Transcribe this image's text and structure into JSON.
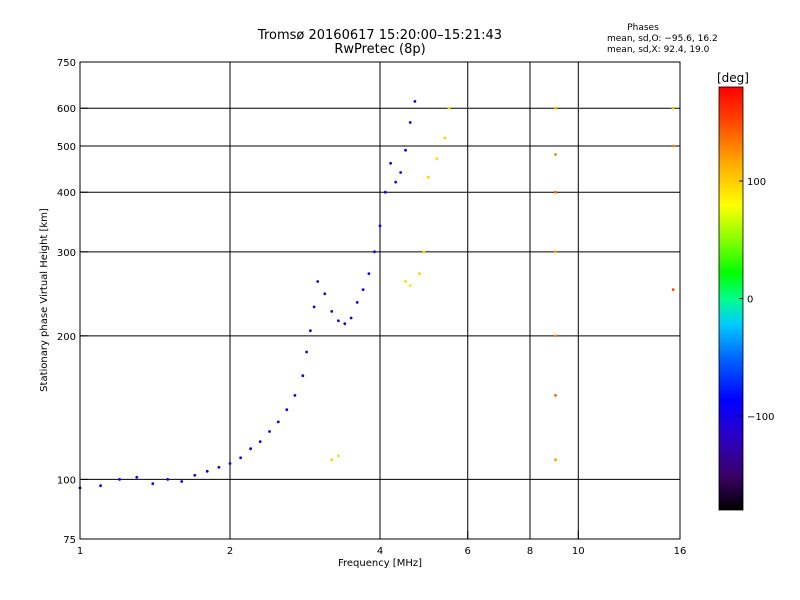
{
  "chart_data": {
    "type": "scatter",
    "title": "Tromsø 20160617 15:20:00–15:21:43",
    "subtitle": "RwPretec (8p)",
    "xlabel": "Frequency [MHz]",
    "ylabel": "Stationary phase Virtual Height [km]",
    "x_scale": "log",
    "y_scale": "log",
    "xlim": [
      1,
      16
    ],
    "ylim": [
      75,
      750
    ],
    "x_ticks": [
      1,
      2,
      4,
      6,
      8,
      10,
      16
    ],
    "x_tick_labels": [
      "1",
      "2",
      "4",
      "6",
      "8",
      "10",
      "16"
    ],
    "y_ticks": [
      75,
      100,
      200,
      300,
      400,
      500,
      600,
      750
    ],
    "y_tick_labels": [
      "75",
      "100",
      "200",
      "300",
      "400",
      "500",
      "600",
      "750"
    ],
    "grid": true,
    "phases_box": {
      "title": "Phases",
      "line1": "mean, sd,O: −95.6, 16.2",
      "line2": "mean, sd,X:  92.4, 19.0"
    },
    "colorbar": {
      "label": "[deg]",
      "range": [
        -180,
        180
      ],
      "ticks": [
        100,
        0,
        -100
      ],
      "tick_labels": [
        "100",
        "0",
        "−100"
      ]
    },
    "series": [
      {
        "values": [
          {
            "x": 1.0,
            "y": 96,
            "phase": -95
          },
          {
            "x": 1.1,
            "y": 97,
            "phase": -100
          },
          {
            "x": 1.2,
            "y": 100,
            "phase": -95
          },
          {
            "x": 1.3,
            "y": 101,
            "phase": -100
          },
          {
            "x": 1.4,
            "y": 98,
            "phase": -95
          },
          {
            "x": 1.5,
            "y": 100,
            "phase": -100
          },
          {
            "x": 1.6,
            "y": 99,
            "phase": -95
          },
          {
            "x": 1.7,
            "y": 102,
            "phase": -100
          },
          {
            "x": 1.8,
            "y": 104,
            "phase": -95
          },
          {
            "x": 1.9,
            "y": 106,
            "phase": -100
          },
          {
            "x": 2.0,
            "y": 108,
            "phase": -95
          },
          {
            "x": 2.1,
            "y": 111,
            "phase": -100
          },
          {
            "x": 2.2,
            "y": 116,
            "phase": -95
          },
          {
            "x": 2.3,
            "y": 120,
            "phase": -100
          },
          {
            "x": 2.4,
            "y": 126,
            "phase": -95
          },
          {
            "x": 2.5,
            "y": 132,
            "phase": -100
          },
          {
            "x": 2.6,
            "y": 140,
            "phase": -95
          },
          {
            "x": 2.7,
            "y": 150,
            "phase": -100
          },
          {
            "x": 2.8,
            "y": 165,
            "phase": -95
          },
          {
            "x": 2.85,
            "y": 185,
            "phase": -100
          },
          {
            "x": 2.9,
            "y": 205,
            "phase": -95
          },
          {
            "x": 2.95,
            "y": 230,
            "phase": -100
          },
          {
            "x": 3.0,
            "y": 260,
            "phase": -120
          },
          {
            "x": 3.1,
            "y": 245,
            "phase": -130
          },
          {
            "x": 3.2,
            "y": 225,
            "phase": -130
          },
          {
            "x": 3.3,
            "y": 215,
            "phase": -120
          },
          {
            "x": 3.4,
            "y": 212,
            "phase": -110
          },
          {
            "x": 3.5,
            "y": 218,
            "phase": -100
          },
          {
            "x": 3.6,
            "y": 235,
            "phase": -95
          },
          {
            "x": 3.7,
            "y": 250,
            "phase": -100
          },
          {
            "x": 3.8,
            "y": 270,
            "phase": -95
          },
          {
            "x": 3.9,
            "y": 300,
            "phase": -100
          },
          {
            "x": 4.0,
            "y": 340,
            "phase": -95
          },
          {
            "x": 4.1,
            "y": 400,
            "phase": -100
          },
          {
            "x": 4.2,
            "y": 460,
            "phase": -100
          },
          {
            "x": 4.3,
            "y": 420,
            "phase": -95
          },
          {
            "x": 4.4,
            "y": 440,
            "phase": -100
          },
          {
            "x": 4.5,
            "y": 490,
            "phase": -95
          },
          {
            "x": 4.6,
            "y": 560,
            "phase": -100
          },
          {
            "x": 4.7,
            "y": 620,
            "phase": -95
          },
          {
            "x": 4.5,
            "y": 260,
            "phase": 95
          },
          {
            "x": 4.6,
            "y": 255,
            "phase": 90
          },
          {
            "x": 4.8,
            "y": 270,
            "phase": 100
          },
          {
            "x": 4.9,
            "y": 300,
            "phase": 95
          },
          {
            "x": 5.0,
            "y": 430,
            "phase": 100
          },
          {
            "x": 5.2,
            "y": 470,
            "phase": 95
          },
          {
            "x": 5.4,
            "y": 520,
            "phase": 100
          },
          {
            "x": 5.5,
            "y": 600,
            "phase": 95
          },
          {
            "x": 3.2,
            "y": 110,
            "phase": 100
          },
          {
            "x": 3.3,
            "y": 112,
            "phase": 95
          },
          {
            "x": 9.0,
            "y": 600,
            "phase": 110
          },
          {
            "x": 9.0,
            "y": 480,
            "phase": 130
          },
          {
            "x": 9.0,
            "y": 400,
            "phase": 140
          },
          {
            "x": 9.0,
            "y": 300,
            "phase": 120
          },
          {
            "x": 9.0,
            "y": 200,
            "phase": 130
          },
          {
            "x": 9.0,
            "y": 150,
            "phase": 140
          },
          {
            "x": 9.0,
            "y": 110,
            "phase": 120
          },
          {
            "x": 15.5,
            "y": 600,
            "phase": 110
          },
          {
            "x": 15.5,
            "y": 500,
            "phase": 130
          },
          {
            "x": 15.5,
            "y": 250,
            "phase": 150
          }
        ]
      }
    ]
  }
}
